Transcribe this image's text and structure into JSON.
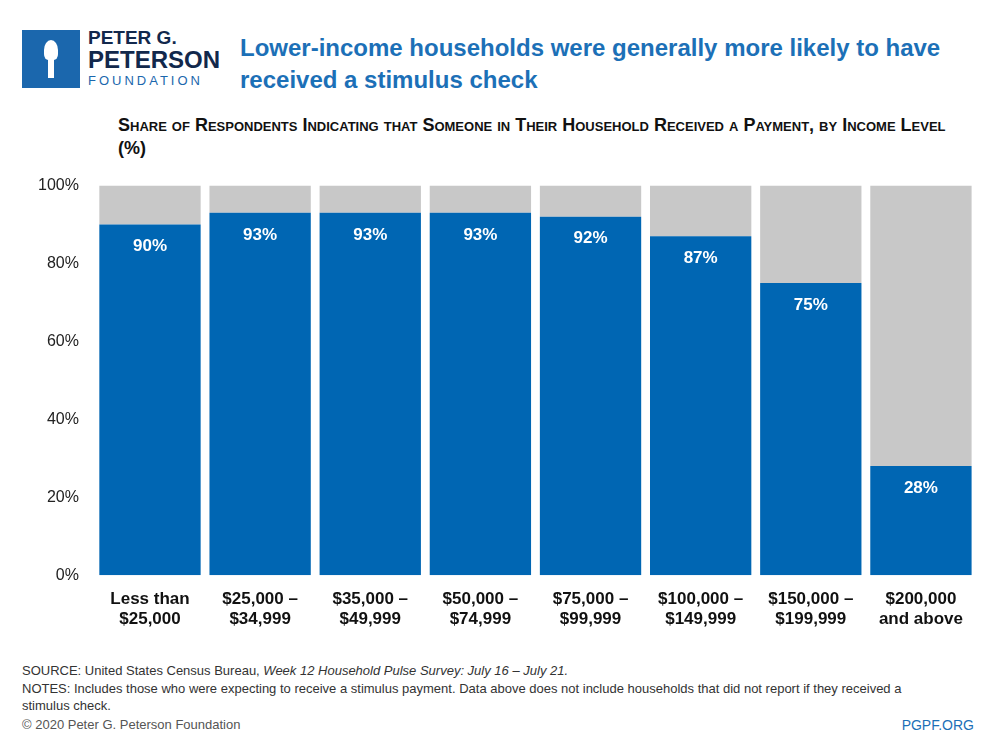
{
  "logo": [
    "PETER G.",
    "PETERSON",
    "FOUNDATION"
  ],
  "chart_data": {
    "type": "bar",
    "title": "Lower-income households were generally more likely to have received a stimulus check",
    "subtitle": "Share of Respondents Indicating that Someone in Their Household Received a Payment, by Income Level (%)",
    "categories": [
      [
        "Less than",
        "$25,000"
      ],
      [
        "$25,000 –",
        "$34,999"
      ],
      [
        "$35,000 –",
        "$49,999"
      ],
      [
        "$50,000 –",
        "$74,999"
      ],
      [
        "$75,000 –",
        "$99,999"
      ],
      [
        "$100,000 –",
        "$149,999"
      ],
      [
        "$150,000 –",
        "$199,999"
      ],
      [
        "$200,000",
        "and above"
      ]
    ],
    "series": [
      {
        "color": "#0066b3",
        "values": [
          90,
          93,
          93,
          93,
          92,
          87,
          75,
          28
        ],
        "value_labels": [
          "90%",
          "93%",
          "93%",
          "93%",
          "92%",
          "87%",
          "75%",
          "28%"
        ]
      },
      {
        "color": "#c8c8c8",
        "values": [
          10,
          7,
          7,
          7,
          8,
          13,
          25,
          72
        ]
      }
    ],
    "stacked": true,
    "data_labels": true,
    "grid": false,
    "ylim": [
      0,
      100
    ],
    "yticks": [
      {
        "value": 0,
        "label": "0%"
      },
      {
        "value": 20,
        "label": "20%"
      },
      {
        "value": 40,
        "label": "40%"
      },
      {
        "value": 60,
        "label": "60%"
      },
      {
        "value": 80,
        "label": "80%"
      },
      {
        "value": 100,
        "label": "100%"
      }
    ]
  },
  "source": {
    "text": "SOURCE: United States Census Bureau,",
    "italic": "Week 12 Household Pulse Survey: July 16 – July 21."
  },
  "notes": "NOTES: Includes those who were expecting to receive a stimulus payment. Data above does not include households that did not report if they received a stimulus check.",
  "copyright": "© 2020 Peter G. Peterson Foundation",
  "website": "PGPF.ORG"
}
